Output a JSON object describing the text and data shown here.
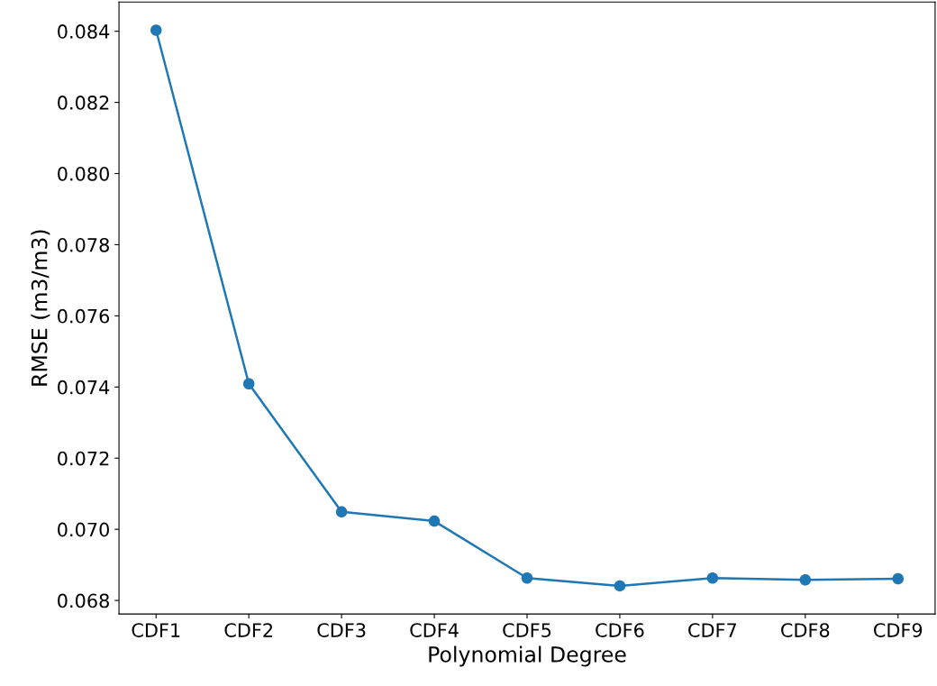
{
  "chart_data": {
    "type": "line",
    "xlabel": "Polynomial Degree",
    "ylabel": "RMSE (m3/m3)",
    "categories": [
      "CDF1",
      "CDF2",
      "CDF3",
      "CDF4",
      "CDF5",
      "CDF6",
      "CDF7",
      "CDF8",
      "CDF9"
    ],
    "series": [
      {
        "color": "#1f77b4",
        "values": [
          0.08403,
          0.07409,
          0.07049,
          0.07023,
          0.06863,
          0.06841,
          0.06863,
          0.06858,
          0.06861
        ]
      }
    ],
    "marker": "circle",
    "line_style": "solid",
    "grid": false,
    "legend": false,
    "ylim": [
      0.06762,
      0.08482
    ],
    "yticks": [
      {
        "value": 0.068,
        "label": "0.068"
      },
      {
        "value": 0.07,
        "label": "0.070"
      },
      {
        "value": 0.072,
        "label": "0.072"
      },
      {
        "value": 0.074,
        "label": "0.074"
      },
      {
        "value": 0.076,
        "label": "0.076"
      },
      {
        "value": 0.078,
        "label": "0.078"
      },
      {
        "value": 0.08,
        "label": "0.080"
      },
      {
        "value": 0.082,
        "label": "0.082"
      },
      {
        "value": 0.084,
        "label": "0.084"
      }
    ]
  }
}
